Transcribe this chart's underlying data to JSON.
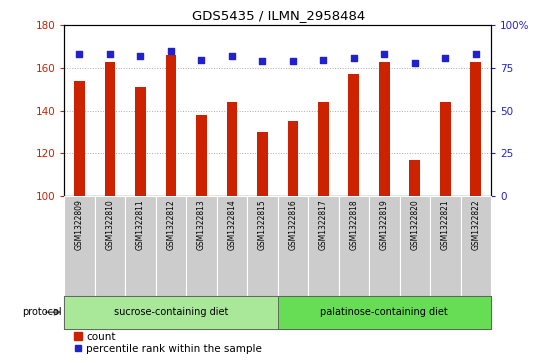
{
  "title": "GDS5435 / ILMN_2958484",
  "samples": [
    "GSM1322809",
    "GSM1322810",
    "GSM1322811",
    "GSM1322812",
    "GSM1322813",
    "GSM1322814",
    "GSM1322815",
    "GSM1322816",
    "GSM1322817",
    "GSM1322818",
    "GSM1322819",
    "GSM1322820",
    "GSM1322821",
    "GSM1322822"
  ],
  "counts": [
    154,
    163,
    151,
    166,
    138,
    144,
    130,
    135,
    144,
    157,
    163,
    117,
    144,
    163
  ],
  "percentiles": [
    83,
    83,
    82,
    85,
    80,
    82,
    79,
    79,
    80,
    81,
    83,
    78,
    81,
    83
  ],
  "ylim_left": [
    100,
    180
  ],
  "ylim_right": [
    0,
    100
  ],
  "yticks_left": [
    100,
    120,
    140,
    160,
    180
  ],
  "yticks_right": [
    0,
    25,
    50,
    75,
    100
  ],
  "ytick_labels_right": [
    "0",
    "25",
    "50",
    "75",
    "100%"
  ],
  "bar_color": "#cc2200",
  "dot_color": "#2222cc",
  "groups": [
    {
      "label": "sucrose-containing diet",
      "start": 0,
      "end": 7,
      "color": "#aae899"
    },
    {
      "label": "palatinose-containing diet",
      "start": 7,
      "end": 14,
      "color": "#66dd55"
    }
  ],
  "protocol_label": "protocol",
  "legend_count_label": "count",
  "legend_pct_label": "percentile rank within the sample",
  "grid_color": "#aaaaaa",
  "bar_width": 0.35,
  "label_box_color": "#cccccc",
  "label_box_edge": "#999999"
}
